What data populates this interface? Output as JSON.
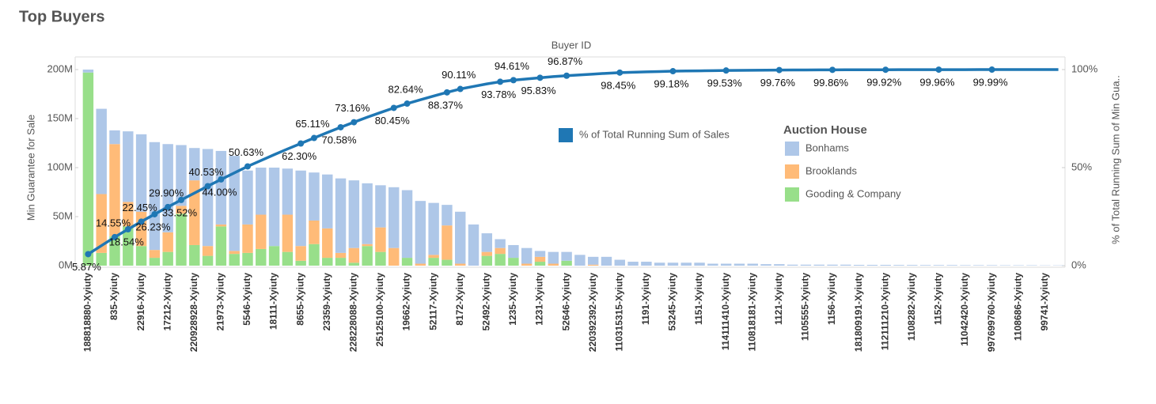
{
  "chart_data": {
    "type": "bar",
    "title": "Top Buyers",
    "x_label": "Buyer ID",
    "y_label": "Min Guarantee for Sale",
    "y2_label": "% of Total Running Sum of Min Gua..",
    "legend_title": "Auction House",
    "categories": [
      "188818880-Xyiuty",
      null,
      "835-Xyiuty",
      null,
      "22916-Xyiuty",
      null,
      "17212-Xyiuty",
      null,
      "220928928-Xyiuty",
      null,
      "21973-Xyiuty",
      null,
      "5546-Xyiuty",
      null,
      "18111-Xyiuty",
      null,
      "8655-Xyiuty",
      null,
      "23359-Xyiuty",
      null,
      "228228088-Xyiuty",
      null,
      "25125100-Xyiuty",
      null,
      "19662-Xyiuty",
      null,
      "52117-Xyiuty",
      null,
      "8172-Xyiuty",
      null,
      "52492-Xyiuty",
      null,
      "1235-Xyiuty",
      null,
      "1231-Xyiuty",
      null,
      "52646-Xyiuty",
      null,
      "220392392-Xyiuty",
      null,
      "110315315-Xyiuty",
      null,
      "1191-Xyiuty",
      null,
      "53245-Xyiuty",
      null,
      "1151-Xyiuty",
      null,
      "114111410-Xyiuty",
      null,
      "110818181-Xyiuty",
      null,
      "1121-Xyiuty",
      null,
      "1105555-Xyiuty",
      null,
      "1156-Xyiuty",
      null,
      "181809191-Xyiuty",
      null,
      "112111210-Xyiuty",
      null,
      "1108282-Xyiuty",
      null,
      "1152-Xyiuty",
      null,
      "11042420-Xyiuty",
      null,
      "997699760-Xyiuty",
      null,
      "1108686-Xyiuty",
      null,
      "99741-Xyiuty",
      null
    ],
    "series": [
      {
        "name": "Bonhams",
        "color": "#aec7e8",
        "values": [
          3,
          87,
          14,
          72,
          79,
          110,
          90,
          62,
          33,
          99,
          75,
          97,
          55,
          48,
          80,
          47,
          77,
          49,
          55,
          76,
          69,
          62,
          43,
          62,
          69,
          64,
          53,
          21,
          53,
          42,
          19,
          9,
          13,
          16,
          6,
          12,
          9,
          11,
          8,
          9,
          6,
          4,
          4,
          3,
          3,
          3,
          3,
          2,
          2,
          2,
          2,
          1.5,
          1.5,
          1,
          1,
          1,
          1,
          1,
          0.8,
          0.8,
          0.8,
          0.7,
          0.7,
          0.6,
          0.6,
          0.6,
          0.5,
          0.5,
          0.5,
          0.4,
          0.4,
          0.4,
          0.3,
          0.3
        ]
      },
      {
        "name": "Brooklands",
        "color": "#ffbb78",
        "values": [
          0,
          60,
          94,
          25,
          35,
          8,
          20,
          8,
          66,
          10,
          2,
          3,
          29,
          35,
          0,
          38,
          15,
          24,
          30,
          5,
          15,
          2,
          25,
          18,
          0,
          2,
          3,
          35,
          2,
          0,
          4,
          6,
          0,
          2,
          5,
          2,
          0,
          0,
          1,
          0,
          0,
          0,
          0,
          0,
          0,
          0,
          0,
          0,
          0,
          0,
          0,
          0,
          0,
          0,
          0,
          0,
          0,
          0,
          0,
          0,
          0,
          0,
          0,
          0,
          0,
          0,
          0,
          0,
          0,
          0,
          0,
          0,
          0,
          0
        ]
      },
      {
        "name": "Gooding & Company",
        "color": "#98df8a",
        "values": [
          197,
          13,
          30,
          40,
          20,
          8,
          14,
          53,
          21,
          10,
          40,
          12,
          13,
          17,
          20,
          14,
          5,
          22,
          8,
          8,
          3,
          20,
          14,
          0,
          8,
          0,
          8,
          6,
          0,
          0,
          10,
          12,
          8,
          0,
          4,
          0,
          5,
          0,
          0,
          0,
          0,
          0,
          0,
          0,
          0,
          0,
          0,
          0,
          0,
          0,
          0,
          0,
          0,
          0,
          0,
          0,
          0,
          0,
          0,
          0,
          0,
          0,
          0,
          0,
          0,
          0,
          0,
          0,
          0,
          0,
          0,
          0,
          0,
          0
        ]
      },
      {
        "name": "% of Total Running Sum of Sales",
        "type": "line",
        "axis": "y2",
        "color": "#1f77b4",
        "values": [
          5.87,
          10.2,
          14.55,
          18.54,
          22.45,
          26.23,
          29.9,
          33.52,
          37.0,
          40.53,
          44.0,
          47.3,
          50.63,
          53.6,
          56.6,
          59.5,
          62.3,
          65.11,
          67.9,
          70.58,
          73.16,
          75.7,
          78.1,
          80.45,
          82.64,
          84.6,
          86.5,
          88.37,
          90.11,
          91.4,
          92.7,
          93.78,
          94.61,
          95.2,
          95.83,
          96.4,
          96.87,
          97.3,
          97.7,
          98.1,
          98.45,
          98.65,
          98.85,
          99.0,
          99.18,
          99.27,
          99.36,
          99.45,
          99.53,
          99.59,
          99.65,
          99.71,
          99.76,
          99.79,
          99.81,
          99.84,
          99.86,
          99.88,
          99.89,
          99.91,
          99.92,
          99.93,
          99.94,
          99.95,
          99.96,
          99.97,
          99.97,
          99.98,
          99.99,
          99.99,
          99.99,
          100,
          100,
          100
        ],
        "value_labels": [
          "5.87%",
          null,
          "14.55%",
          "18.54%",
          "22.45%",
          "26.23%",
          "29.90%",
          "33.52%",
          null,
          "40.53%",
          "44.00%",
          null,
          "50.63%",
          null,
          null,
          null,
          "62.30%",
          "65.11%",
          null,
          "70.58%",
          "73.16%",
          null,
          null,
          "80.45%",
          "82.64%",
          null,
          null,
          "88.37%",
          "90.11%",
          null,
          null,
          "93.78%",
          "94.61%",
          null,
          "95.83%",
          null,
          "96.87%",
          null,
          null,
          null,
          "98.45%",
          null,
          null,
          null,
          "99.18%",
          null,
          null,
          null,
          "99.53%",
          null,
          null,
          null,
          "99.76%",
          null,
          null,
          null,
          "99.86%",
          null,
          null,
          null,
          "99.92%",
          null,
          null,
          null,
          "99.96%",
          null,
          null,
          null,
          "99.99%",
          null,
          null,
          null,
          null,
          null
        ]
      }
    ],
    "ylim": [
      0,
      200
    ],
    "yticks": [
      {
        "value": 0,
        "label": "0M"
      },
      {
        "value": 50,
        "label": "50M"
      },
      {
        "value": 100,
        "label": "100M"
      },
      {
        "value": 150,
        "label": "150M"
      },
      {
        "value": 200,
        "label": "200M"
      }
    ],
    "y2lim": [
      0,
      100
    ],
    "y2ticks": [
      {
        "value": 0,
        "label": "0%"
      },
      {
        "value": 50,
        "label": "50%"
      },
      {
        "value": 100,
        "label": "100%"
      }
    ],
    "grid": false
  }
}
